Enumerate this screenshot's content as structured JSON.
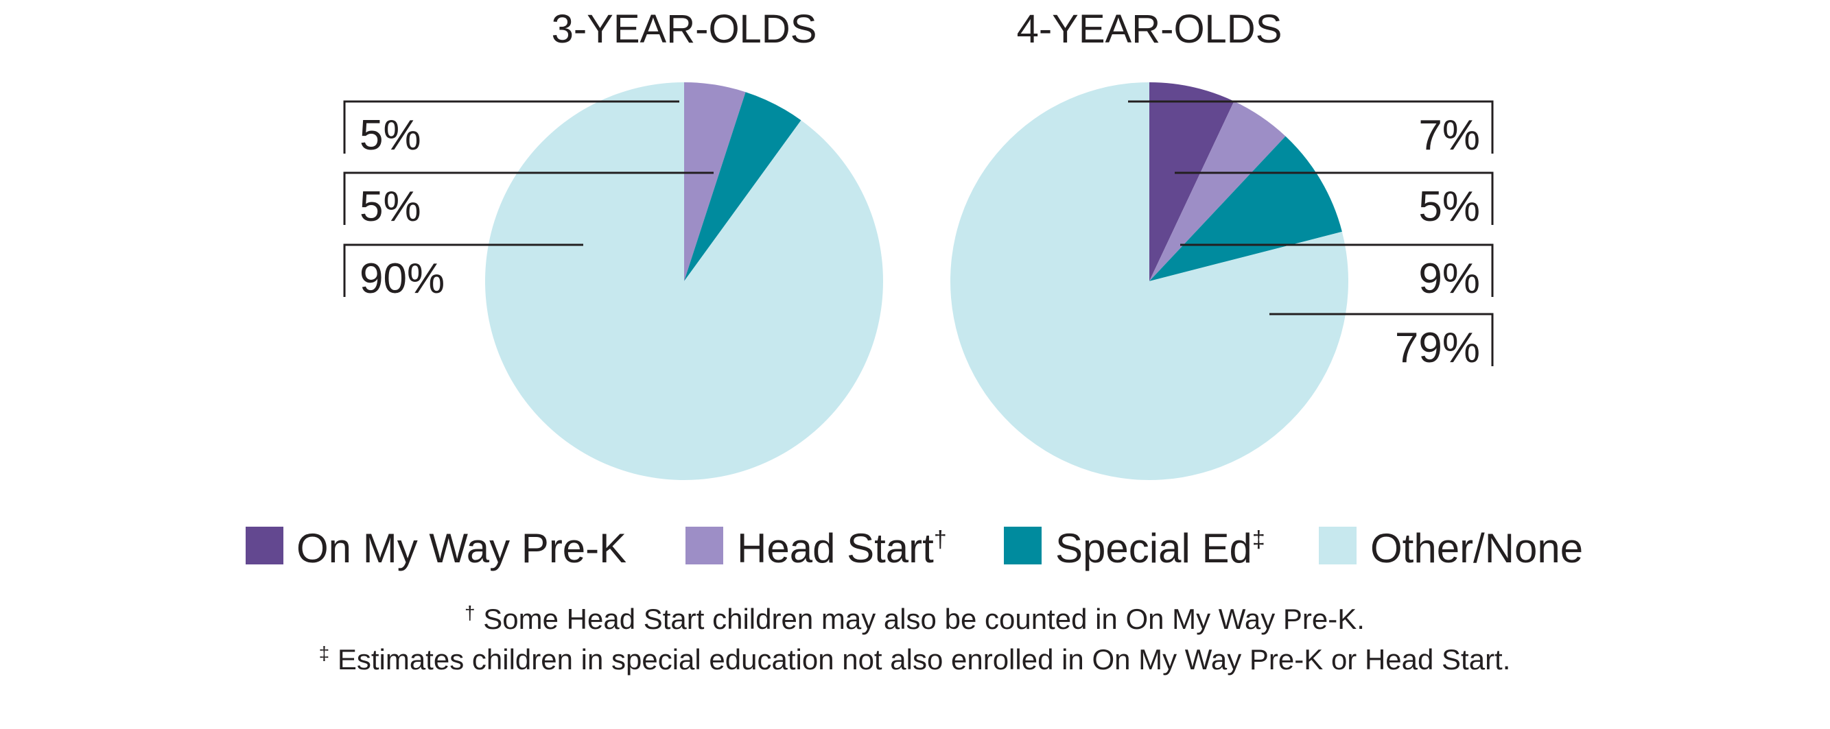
{
  "chart_data": {
    "type": "pie",
    "categories": [
      "On My Way Pre-K",
      "Head Start",
      "Special Ed",
      "Other/None"
    ],
    "colors": {
      "On My Way Pre-K": "#634890",
      "Head Start": "#9d8ec6",
      "Special Ed": "#008b9e",
      "Other/None": "#c7e8ee"
    },
    "charts": [
      {
        "title": "3-YEAR-OLDS",
        "slices": [
          {
            "label": "Head Start",
            "value": 5,
            "text": "5%"
          },
          {
            "label": "Special Ed",
            "value": 5,
            "text": "5%"
          },
          {
            "label": "Other/None",
            "value": 90,
            "text": "90%"
          }
        ]
      },
      {
        "title": "4-YEAR-OLDS",
        "slices": [
          {
            "label": "On My Way Pre-K",
            "value": 7,
            "text": "7%"
          },
          {
            "label": "Head Start",
            "value": 5,
            "text": "5%"
          },
          {
            "label": "Special Ed",
            "value": 9,
            "text": "9%"
          },
          {
            "label": "Other/None",
            "value": 79,
            "text": "79%"
          }
        ]
      }
    ],
    "legend": [
      {
        "label": "On My Way Pre-K",
        "mark": "",
        "color": "#634890"
      },
      {
        "label": "Head Start",
        "mark": "†",
        "color": "#9d8ec6"
      },
      {
        "label": "Special Ed",
        "mark": "‡",
        "color": "#008b9e"
      },
      {
        "label": "Other/None",
        "mark": "",
        "color": "#c7e8ee"
      }
    ],
    "legend_placement": "bottom"
  },
  "footnotes": [
    {
      "mark": "†",
      "text": " Some Head Start children may also be counted in On My Way Pre-K."
    },
    {
      "mark": "‡",
      "text": " Estimates children in special education not also enrolled in On My Way Pre-K or Head Start."
    }
  ]
}
